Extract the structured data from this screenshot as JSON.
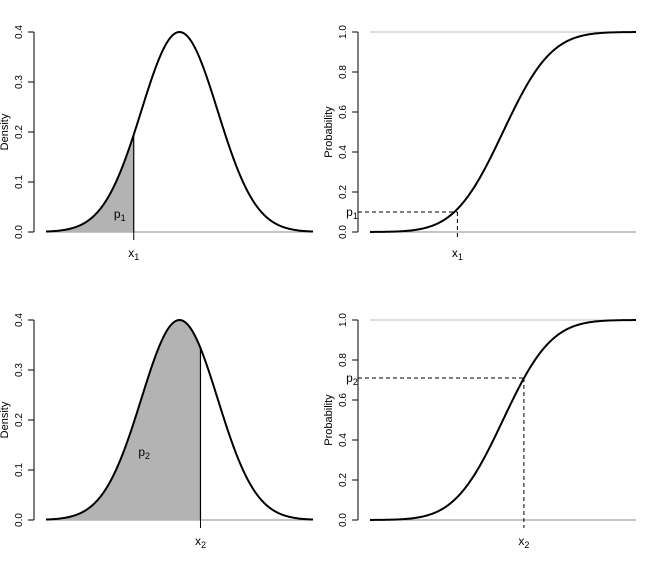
{
  "chart_data": [
    {
      "type": "area",
      "panel": "top-left",
      "title": "",
      "xlabel": "",
      "ylabel": "Density",
      "ylim": [
        0,
        0.4
      ],
      "yticks": [
        "0.0",
        "0.1",
        "0.2",
        "0.3",
        "0.4"
      ],
      "curve": "standard-normal-density",
      "xlim": [
        -3.5,
        3.5
      ],
      "peak_y": 0.4,
      "shaded_from": -3.5,
      "shaded_to": -1.2,
      "marker": {
        "base": "x",
        "sub": "1",
        "at": -1.2
      },
      "area_label": {
        "base": "p",
        "sub": "1"
      },
      "grid": false
    },
    {
      "type": "line",
      "panel": "top-right",
      "title": "",
      "xlabel": "",
      "ylabel": "Probability",
      "ylim": [
        0,
        1
      ],
      "yticks": [
        "0.0",
        "0.2",
        "0.4",
        "0.6",
        "0.8",
        "1.0"
      ],
      "curve": "standard-normal-cdf",
      "xlim": [
        -3.5,
        3.5
      ],
      "marker": {
        "base": "x",
        "sub": "1",
        "at": -1.2
      },
      "level_label": {
        "base": "p",
        "sub": "1"
      },
      "level": 0.1,
      "reference_line_at": 1.0,
      "grid": false
    },
    {
      "type": "area",
      "panel": "bottom-left",
      "title": "",
      "xlabel": "",
      "ylabel": "Density",
      "ylim": [
        0,
        0.4
      ],
      "yticks": [
        "0.0",
        "0.1",
        "0.2",
        "0.3",
        "0.4"
      ],
      "curve": "standard-normal-density",
      "xlim": [
        -3.5,
        3.5
      ],
      "peak_y": 0.4,
      "shaded_from": -3.5,
      "shaded_to": 0.55,
      "marker": {
        "base": "x",
        "sub": "2",
        "at": 0.55
      },
      "area_label": {
        "base": "p",
        "sub": "2"
      },
      "grid": false
    },
    {
      "type": "line",
      "panel": "bottom-right",
      "title": "",
      "xlabel": "",
      "ylabel": "Probability",
      "ylim": [
        0,
        1
      ],
      "yticks": [
        "0.0",
        "0.2",
        "0.4",
        "0.6",
        "0.8",
        "1.0"
      ],
      "curve": "standard-normal-cdf",
      "xlim": [
        -3.5,
        3.5
      ],
      "marker": {
        "base": "x",
        "sub": "2",
        "at": 0.55
      },
      "level_label": {
        "base": "p",
        "sub": "2"
      },
      "level": 0.71,
      "reference_line_at": 1.0,
      "grid": false
    }
  ],
  "colors": {
    "curve": "#000000",
    "shade": "#b3b3b3",
    "reference_line": "#bbbbbb",
    "dashed": "#000000"
  }
}
